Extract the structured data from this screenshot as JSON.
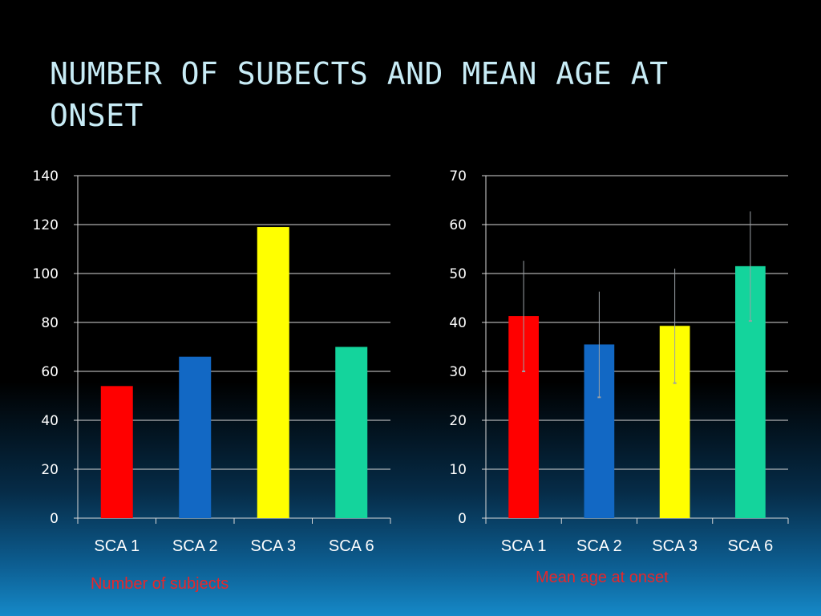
{
  "slide": {
    "title": "NUMBER OF SUBECTS AND MEAN AGE AT ONSET"
  },
  "colors": {
    "title": "#c8ecf6",
    "caption": "#e8262a",
    "gridline": "#d9d9d9",
    "error_bar": "#9aa0a6"
  },
  "chart_data": [
    {
      "type": "bar",
      "title": "",
      "xlabel": "",
      "ylabel": "",
      "caption": "Number of subjects",
      "categories": [
        "SCA 1",
        "SCA 2",
        "SCA 3",
        "SCA 6"
      ],
      "values": [
        54,
        66,
        119,
        70
      ],
      "colors": [
        "#ff0000",
        "#1268c4",
        "#ffff00",
        "#14d49c"
      ],
      "ylim": [
        0,
        140
      ],
      "yticks": [
        0,
        20,
        40,
        60,
        80,
        100,
        120,
        140
      ],
      "grid": true
    },
    {
      "type": "bar",
      "title": "",
      "xlabel": "",
      "ylabel": "",
      "caption": "Mean age at onset",
      "categories": [
        "SCA 1",
        "SCA 2",
        "SCA 3",
        "SCA 6"
      ],
      "values": [
        41.3,
        35.5,
        39.3,
        51.5
      ],
      "error": [
        11.3,
        10.8,
        11.7,
        11.2
      ],
      "colors": [
        "#ff0000",
        "#1268c4",
        "#ffff00",
        "#14d49c"
      ],
      "ylim": [
        0,
        70
      ],
      "yticks": [
        0,
        10,
        20,
        30,
        40,
        50,
        60,
        70
      ],
      "grid": true
    }
  ]
}
